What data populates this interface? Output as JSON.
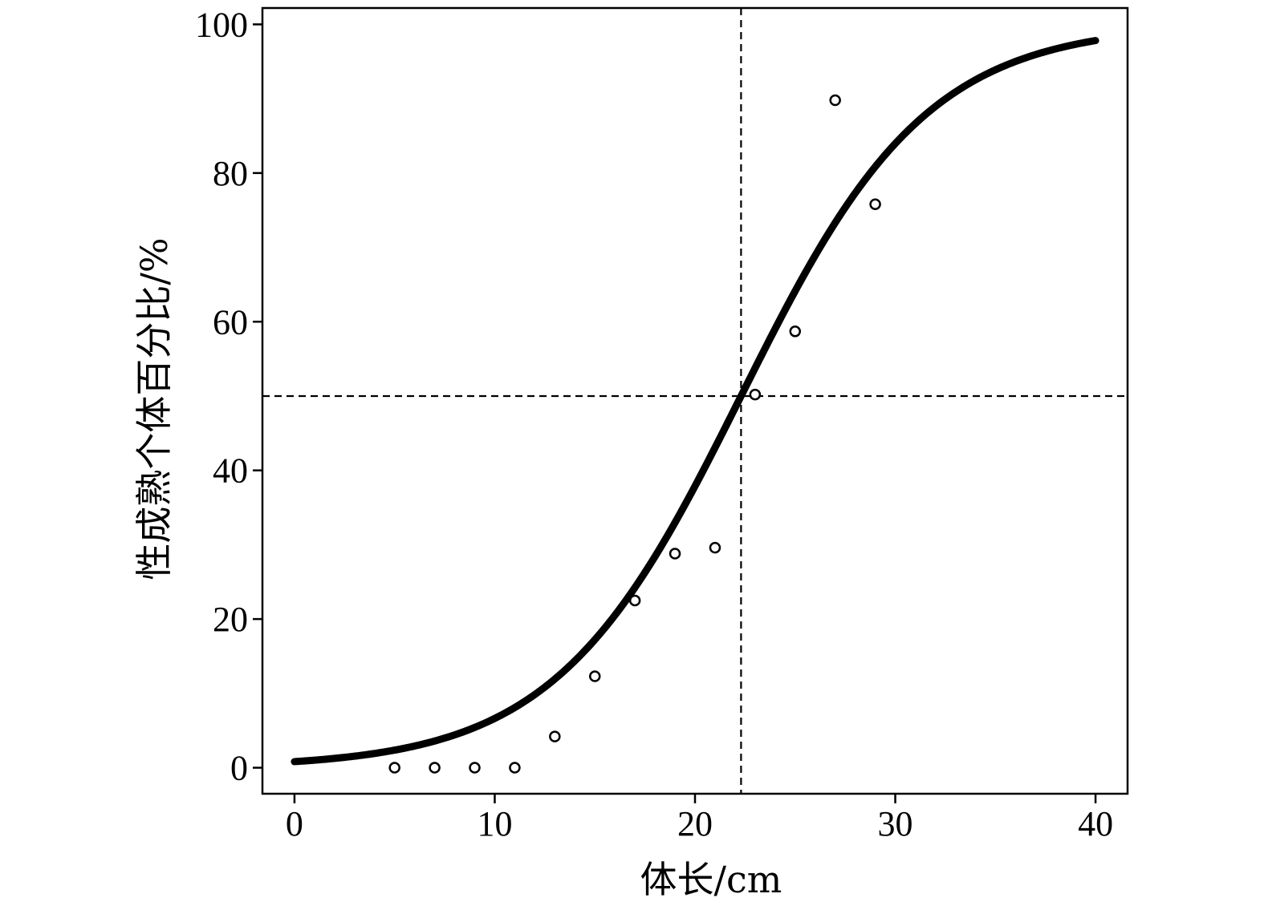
{
  "chart_data": {
    "type": "scatter",
    "title": "",
    "xlabel": "体长/cm",
    "ylabel": "性成熟个体百分比/%",
    "xlim": [
      -1.6,
      41.6
    ],
    "ylim": [
      -3.5,
      102.2
    ],
    "xticks": [
      0,
      10,
      20,
      30,
      40
    ],
    "yticks": [
      0,
      20,
      40,
      60,
      80,
      100
    ],
    "grid": false,
    "legend": "none",
    "series": [
      {
        "kind": "observed-points",
        "marker": "open-circle",
        "x": [
          5,
          7,
          9,
          11,
          13,
          15,
          17,
          19,
          21,
          23,
          25,
          27,
          29
        ],
        "y": [
          0,
          0,
          0,
          0,
          4.2,
          12.3,
          22.5,
          28.8,
          29.6,
          50.2,
          58.7,
          89.8,
          75.8
        ]
      },
      {
        "kind": "fitted-logistic-curve",
        "x_range": [
          0,
          40
        ],
        "params": {
          "L50": 22.3,
          "k": 0.215
        }
      }
    ],
    "reference_lines": {
      "vertical_x": 22.3,
      "horizontal_y": 50
    },
    "colors": {
      "ink": "#000000",
      "background": "#ffffff"
    }
  }
}
